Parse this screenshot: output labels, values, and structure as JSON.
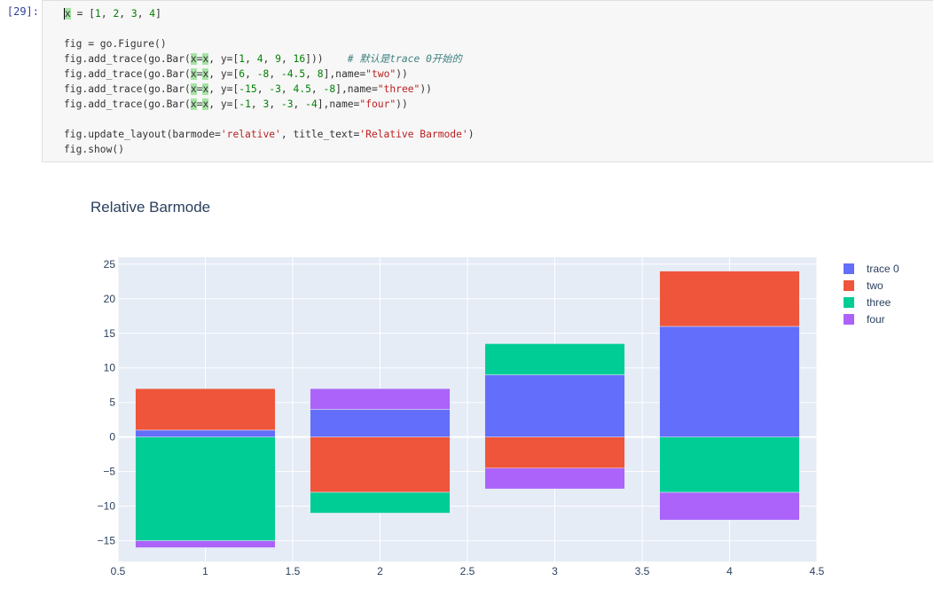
{
  "cell": {
    "prompt": "[29]:",
    "code_lines": [
      [
        {
          "t": "x",
          "c": "hl"
        },
        {
          "t": " = ["
        },
        {
          "t": "1",
          "c": "num"
        },
        {
          "t": ", "
        },
        {
          "t": "2",
          "c": "num"
        },
        {
          "t": ", "
        },
        {
          "t": "3",
          "c": "num"
        },
        {
          "t": ", "
        },
        {
          "t": "4",
          "c": "num"
        },
        {
          "t": "]"
        }
      ],
      [],
      [
        {
          "t": "fig = go.Figure()"
        }
      ],
      [
        {
          "t": "fig.add_trace(go.Bar("
        },
        {
          "t": "x",
          "c": "hl"
        },
        {
          "t": "="
        },
        {
          "t": "x",
          "c": "hl"
        },
        {
          "t": ", y=["
        },
        {
          "t": "1",
          "c": "num"
        },
        {
          "t": ", "
        },
        {
          "t": "4",
          "c": "num"
        },
        {
          "t": ", "
        },
        {
          "t": "9",
          "c": "num"
        },
        {
          "t": ", "
        },
        {
          "t": "16",
          "c": "num"
        },
        {
          "t": "]))    "
        },
        {
          "t": "# 默认是trace 0开始的",
          "c": "comment"
        }
      ],
      [
        {
          "t": "fig.add_trace(go.Bar("
        },
        {
          "t": "x",
          "c": "hl"
        },
        {
          "t": "="
        },
        {
          "t": "x",
          "c": "hl"
        },
        {
          "t": ", y=["
        },
        {
          "t": "6",
          "c": "num"
        },
        {
          "t": ", "
        },
        {
          "t": "-8",
          "c": "num"
        },
        {
          "t": ", "
        },
        {
          "t": "-4.5",
          "c": "num"
        },
        {
          "t": ", "
        },
        {
          "t": "8",
          "c": "num"
        },
        {
          "t": "],name="
        },
        {
          "t": "\"two\"",
          "c": "str"
        },
        {
          "t": "))"
        }
      ],
      [
        {
          "t": "fig.add_trace(go.Bar("
        },
        {
          "t": "x",
          "c": "hl"
        },
        {
          "t": "="
        },
        {
          "t": "x",
          "c": "hl"
        },
        {
          "t": ", y=["
        },
        {
          "t": "-15",
          "c": "num"
        },
        {
          "t": ", "
        },
        {
          "t": "-3",
          "c": "num"
        },
        {
          "t": ", "
        },
        {
          "t": "4.5",
          "c": "num"
        },
        {
          "t": ", "
        },
        {
          "t": "-8",
          "c": "num"
        },
        {
          "t": "],name="
        },
        {
          "t": "\"three\"",
          "c": "str"
        },
        {
          "t": "))"
        }
      ],
      [
        {
          "t": "fig.add_trace(go.Bar("
        },
        {
          "t": "x",
          "c": "hl"
        },
        {
          "t": "="
        },
        {
          "t": "x",
          "c": "hl"
        },
        {
          "t": ", y=["
        },
        {
          "t": "-1",
          "c": "num"
        },
        {
          "t": ", "
        },
        {
          "t": "3",
          "c": "num"
        },
        {
          "t": ", "
        },
        {
          "t": "-3",
          "c": "num"
        },
        {
          "t": ", "
        },
        {
          "t": "-4",
          "c": "num"
        },
        {
          "t": "],name="
        },
        {
          "t": "\"four\"",
          "c": "str"
        },
        {
          "t": "))"
        }
      ],
      [],
      [
        {
          "t": "fig.update_layout(barmode="
        },
        {
          "t": "'relative'",
          "c": "str"
        },
        {
          "t": ", title_text="
        },
        {
          "t": "'Relative Barmode'",
          "c": "str"
        },
        {
          "t": ")"
        }
      ],
      [
        {
          "t": "fig.show()"
        }
      ]
    ]
  },
  "chart_data": {
    "type": "bar",
    "barmode": "relative",
    "title": "Relative Barmode",
    "categories": [
      1,
      2,
      3,
      4
    ],
    "series": [
      {
        "name": "trace 0",
        "values": [
          1,
          4,
          9,
          16
        ],
        "color": "#636efa"
      },
      {
        "name": "two",
        "values": [
          6,
          -8,
          -4.5,
          8
        ],
        "color": "#ef553b"
      },
      {
        "name": "three",
        "values": [
          -15,
          -3,
          4.5,
          -8
        ],
        "color": "#00cc96"
      },
      {
        "name": "four",
        "values": [
          -1,
          3,
          -3,
          -4
        ],
        "color": "#ab63fa"
      }
    ],
    "xlim": [
      0.5,
      4.5
    ],
    "ylim": [
      -18,
      26
    ],
    "x_ticks": [
      "0.5",
      "1",
      "1.5",
      "2",
      "2.5",
      "3",
      "3.5",
      "4",
      "4.5"
    ],
    "y_ticks": [
      "25",
      "20",
      "15",
      "10",
      "5",
      "0",
      "−5",
      "−10",
      "−15"
    ],
    "plot_bg": "#e5ecf6",
    "grid": true,
    "legend_position": "top-right"
  }
}
